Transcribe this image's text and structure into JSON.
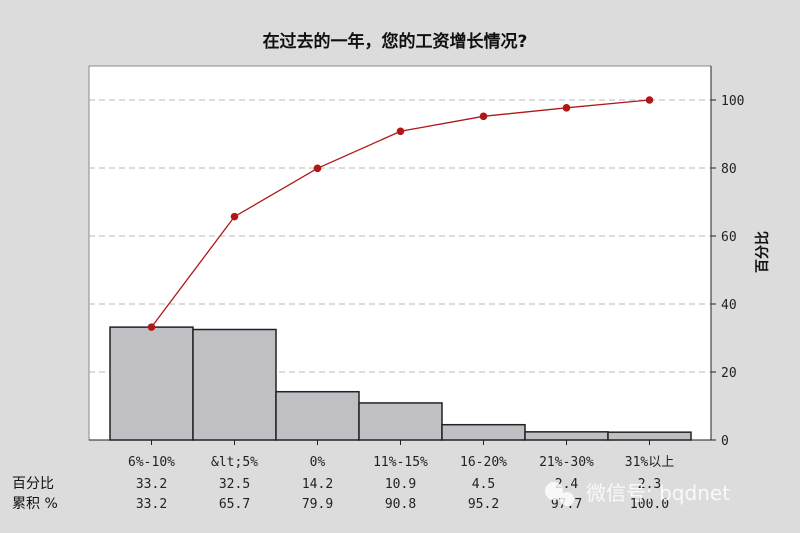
{
  "chart_data": {
    "type": "bar",
    "title": "在过去的一年，您的工资增长情况?",
    "categories": [
      "6%-10%",
      "&lt;5%",
      "0%",
      "11%-15%",
      "16-20%",
      "21%-30%",
      "31%以上"
    ],
    "series": [
      {
        "values": [
          33.2,
          32.5,
          14.2,
          10.9,
          4.5,
          2.4,
          2.3
        ]
      },
      {
        "values": [
          33.2,
          65.7,
          79.9,
          90.8,
          95.2,
          97.7,
          100.0
        ]
      }
    ],
    "ylabel": "百分比",
    "ylim": [
      0,
      110
    ],
    "yticks": [
      0,
      20,
      40,
      60,
      80,
      100
    ],
    "grid": true,
    "table": {
      "row1_label": "百分比",
      "row1_values": [
        "33.2",
        "32.5",
        "14.2",
        "10.9",
        "4.5",
        "2.4",
        "2.3"
      ],
      "row2_label": "累积 %",
      "row2_values": [
        "33.2",
        "65.7",
        "79.9",
        "90.8",
        "95.2",
        "97.7",
        "100.0"
      ]
    },
    "colors": {
      "bar_fill": "#c0c0c4",
      "bar_stroke": "#222222",
      "line": "#b01818",
      "grid": "#b8b8b8"
    }
  },
  "watermark": {
    "text": "微信号: bqdnet"
  }
}
